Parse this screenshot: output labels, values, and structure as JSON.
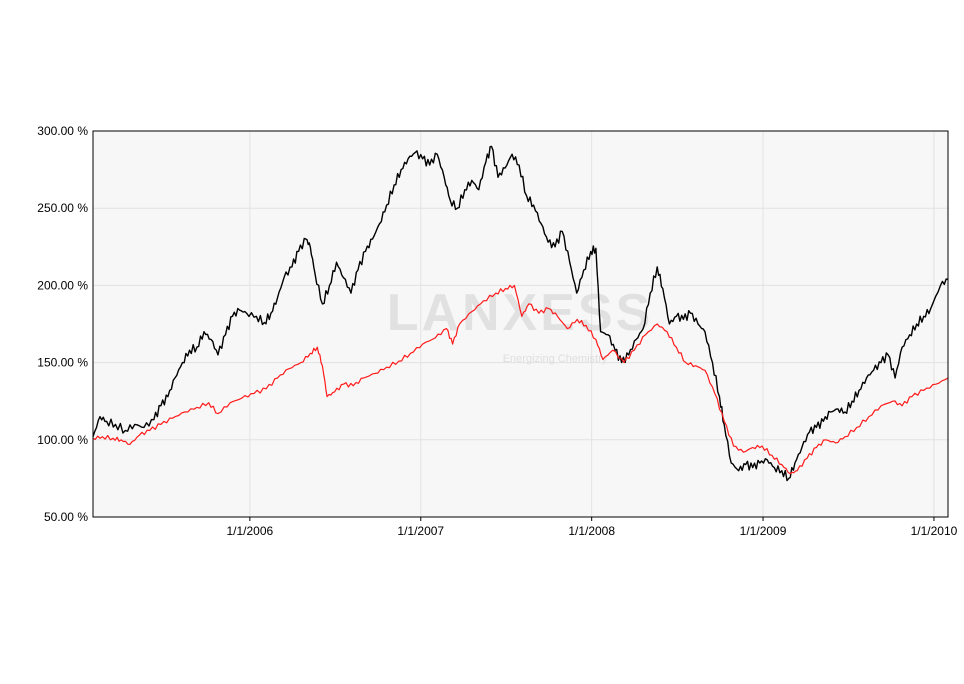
{
  "chart_data": {
    "type": "line",
    "title": "",
    "xlabel": "",
    "ylabel": "",
    "x_tick_labels": [
      "1/1/2006",
      "1/1/2007",
      "1/1/2008",
      "1/1/2009",
      "1/1/2010"
    ],
    "y_tick_labels": [
      "50.00 %",
      "100.00 %",
      "150.00 %",
      "200.00 %",
      "250.00 %",
      "300.00 %"
    ],
    "ylim": [
      50,
      300
    ],
    "xlim": [
      "2005-01-31",
      "2010-01-31"
    ],
    "grid": true,
    "watermark": {
      "logo_text": "LANXESS",
      "tagline": "Energizing Chemistry"
    },
    "colors": {
      "background": "#f7f7f7",
      "grid": "#e2e2e2",
      "series_black": "#000000",
      "series_red": "#ff1a1a",
      "watermark_logo": "#d0d0d0",
      "watermark_tagline": "#d8d8d8"
    },
    "series": [
      {
        "color": "#000000",
        "points": [
          [
            "2005-01-31",
            102
          ],
          [
            "2005-02-15",
            115
          ],
          [
            "2005-03-01",
            112
          ],
          [
            "2005-03-20",
            110
          ],
          [
            "2005-04-10",
            106
          ],
          [
            "2005-04-30",
            110
          ],
          [
            "2005-05-20",
            108
          ],
          [
            "2005-06-10",
            113
          ],
          [
            "2005-06-25",
            122
          ],
          [
            "2005-07-10",
            128
          ],
          [
            "2005-07-25",
            140
          ],
          [
            "2005-08-10",
            150
          ],
          [
            "2005-08-25",
            158
          ],
          [
            "2005-09-10",
            160
          ],
          [
            "2005-09-25",
            170
          ],
          [
            "2005-10-10",
            165
          ],
          [
            "2005-10-25",
            155
          ],
          [
            "2005-11-10",
            168
          ],
          [
            "2005-11-25",
            180
          ],
          [
            "2005-12-10",
            184
          ],
          [
            "2005-12-25",
            182
          ],
          [
            "2006-01-15",
            180
          ],
          [
            "2006-02-01",
            176
          ],
          [
            "2006-02-15",
            182
          ],
          [
            "2006-03-01",
            192
          ],
          [
            "2006-03-15",
            205
          ],
          [
            "2006-04-01",
            212
          ],
          [
            "2006-04-15",
            222
          ],
          [
            "2006-05-01",
            230
          ],
          [
            "2006-05-10",
            225
          ],
          [
            "2006-05-20",
            208
          ],
          [
            "2006-06-05",
            188
          ],
          [
            "2006-06-20",
            200
          ],
          [
            "2006-07-05",
            215
          ],
          [
            "2006-07-20",
            205
          ],
          [
            "2006-08-05",
            195
          ],
          [
            "2006-08-20",
            210
          ],
          [
            "2006-09-05",
            222
          ],
          [
            "2006-09-20",
            230
          ],
          [
            "2006-10-05",
            240
          ],
          [
            "2006-10-20",
            252
          ],
          [
            "2006-11-05",
            265
          ],
          [
            "2006-11-20",
            275
          ],
          [
            "2006-12-05",
            282
          ],
          [
            "2006-12-20",
            286
          ],
          [
            "2007-01-05",
            282
          ],
          [
            "2007-01-20",
            278
          ],
          [
            "2007-02-05",
            285
          ],
          [
            "2007-02-20",
            270
          ],
          [
            "2007-03-05",
            255
          ],
          [
            "2007-03-20",
            250
          ],
          [
            "2007-04-05",
            262
          ],
          [
            "2007-04-20",
            268
          ],
          [
            "2007-05-05",
            262
          ],
          [
            "2007-05-20",
            280
          ],
          [
            "2007-06-01",
            290
          ],
          [
            "2007-06-15",
            270
          ],
          [
            "2007-06-30",
            276
          ],
          [
            "2007-07-15",
            285
          ],
          [
            "2007-07-30",
            278
          ],
          [
            "2007-08-15",
            258
          ],
          [
            "2007-08-30",
            252
          ],
          [
            "2007-09-15",
            240
          ],
          [
            "2007-09-30",
            228
          ],
          [
            "2007-10-15",
            225
          ],
          [
            "2007-10-30",
            235
          ],
          [
            "2007-11-15",
            215
          ],
          [
            "2007-11-30",
            195
          ],
          [
            "2007-12-15",
            210
          ],
          [
            "2007-12-30",
            222
          ],
          [
            "2008-01-10",
            224
          ],
          [
            "2008-01-20",
            170
          ],
          [
            "2008-02-05",
            168
          ],
          [
            "2008-02-20",
            158
          ],
          [
            "2008-03-05",
            150
          ],
          [
            "2008-03-20",
            155
          ],
          [
            "2008-04-05",
            165
          ],
          [
            "2008-04-20",
            172
          ],
          [
            "2008-05-05",
            195
          ],
          [
            "2008-05-20",
            212
          ],
          [
            "2008-06-01",
            198
          ],
          [
            "2008-06-15",
            175
          ],
          [
            "2008-06-30",
            180
          ],
          [
            "2008-07-15",
            178
          ],
          [
            "2008-07-30",
            182
          ],
          [
            "2008-08-15",
            175
          ],
          [
            "2008-08-30",
            170
          ],
          [
            "2008-09-15",
            150
          ],
          [
            "2008-09-30",
            128
          ],
          [
            "2008-10-10",
            110
          ],
          [
            "2008-10-25",
            85
          ],
          [
            "2008-11-10",
            80
          ],
          [
            "2008-11-25",
            84
          ],
          [
            "2008-12-10",
            82
          ],
          [
            "2008-12-25",
            85
          ],
          [
            "2009-01-10",
            87
          ],
          [
            "2009-01-25",
            82
          ],
          [
            "2009-02-10",
            80
          ],
          [
            "2009-02-25",
            75
          ],
          [
            "2009-03-10",
            85
          ],
          [
            "2009-03-25",
            95
          ],
          [
            "2009-04-10",
            105
          ],
          [
            "2009-04-25",
            108
          ],
          [
            "2009-05-10",
            112
          ],
          [
            "2009-05-25",
            118
          ],
          [
            "2009-06-10",
            120
          ],
          [
            "2009-06-25",
            118
          ],
          [
            "2009-07-10",
            125
          ],
          [
            "2009-07-25",
            132
          ],
          [
            "2009-08-10",
            140
          ],
          [
            "2009-08-25",
            145
          ],
          [
            "2009-09-10",
            150
          ],
          [
            "2009-09-25",
            155
          ],
          [
            "2009-10-10",
            140
          ],
          [
            "2009-10-25",
            160
          ],
          [
            "2009-11-10",
            168
          ],
          [
            "2009-11-25",
            175
          ],
          [
            "2009-12-10",
            180
          ],
          [
            "2009-12-25",
            185
          ],
          [
            "2010-01-15",
            200
          ],
          [
            "2010-01-31",
            204
          ]
        ]
      },
      {
        "color": "#ff1a1a",
        "points": [
          [
            "2005-01-31",
            101
          ],
          [
            "2005-02-20",
            102
          ],
          [
            "2005-03-15",
            101
          ],
          [
            "2005-04-01",
            100
          ],
          [
            "2005-04-20",
            97
          ],
          [
            "2005-05-10",
            103
          ],
          [
            "2005-06-01",
            106
          ],
          [
            "2005-06-25",
            110
          ],
          [
            "2005-07-20",
            114
          ],
          [
            "2005-08-15",
            118
          ],
          [
            "2005-09-10",
            121
          ],
          [
            "2005-10-05",
            124
          ],
          [
            "2005-10-25",
            117
          ],
          [
            "2005-11-20",
            124
          ],
          [
            "2005-12-15",
            127
          ],
          [
            "2006-01-10",
            130
          ],
          [
            "2006-02-05",
            133
          ],
          [
            "2006-03-01",
            140
          ],
          [
            "2006-03-25",
            146
          ],
          [
            "2006-04-20",
            150
          ],
          [
            "2006-05-10",
            156
          ],
          [
            "2006-05-25",
            160
          ],
          [
            "2006-06-05",
            148
          ],
          [
            "2006-06-15",
            128
          ],
          [
            "2006-07-01",
            131
          ],
          [
            "2006-07-20",
            136
          ],
          [
            "2006-08-10",
            135
          ],
          [
            "2006-09-01",
            140
          ],
          [
            "2006-09-25",
            143
          ],
          [
            "2006-10-20",
            147
          ],
          [
            "2006-11-15",
            151
          ],
          [
            "2006-12-10",
            156
          ],
          [
            "2007-01-05",
            162
          ],
          [
            "2007-02-01",
            166
          ],
          [
            "2007-02-25",
            172
          ],
          [
            "2007-03-10",
            162
          ],
          [
            "2007-03-25",
            175
          ],
          [
            "2007-04-20",
            183
          ],
          [
            "2007-05-15",
            190
          ],
          [
            "2007-06-10",
            195
          ],
          [
            "2007-07-01",
            198
          ],
          [
            "2007-07-20",
            200
          ],
          [
            "2007-08-05",
            180
          ],
          [
            "2007-08-20",
            188
          ],
          [
            "2007-09-10",
            182
          ],
          [
            "2007-10-01",
            185
          ],
          [
            "2007-10-20",
            180
          ],
          [
            "2007-11-10",
            172
          ],
          [
            "2007-12-01",
            178
          ],
          [
            "2007-12-20",
            174
          ],
          [
            "2008-01-10",
            165
          ],
          [
            "2008-01-25",
            152
          ],
          [
            "2008-02-15",
            158
          ],
          [
            "2008-03-10",
            150
          ],
          [
            "2008-04-01",
            158
          ],
          [
            "2008-04-25",
            168
          ],
          [
            "2008-05-20",
            175
          ],
          [
            "2008-06-10",
            170
          ],
          [
            "2008-06-30",
            160
          ],
          [
            "2008-07-20",
            150
          ],
          [
            "2008-08-10",
            148
          ],
          [
            "2008-08-30",
            145
          ],
          [
            "2008-09-20",
            130
          ],
          [
            "2008-10-10",
            112
          ],
          [
            "2008-10-30",
            96
          ],
          [
            "2008-11-20",
            92
          ],
          [
            "2008-12-10",
            95
          ],
          [
            "2008-12-30",
            96
          ],
          [
            "2009-01-20",
            90
          ],
          [
            "2009-02-10",
            84
          ],
          [
            "2009-02-28",
            78
          ],
          [
            "2009-03-15",
            80
          ],
          [
            "2009-04-05",
            88
          ],
          [
            "2009-04-25",
            95
          ],
          [
            "2009-05-15",
            100
          ],
          [
            "2009-06-05",
            98
          ],
          [
            "2009-06-25",
            102
          ],
          [
            "2009-07-20",
            108
          ],
          [
            "2009-08-15",
            115
          ],
          [
            "2009-09-10",
            122
          ],
          [
            "2009-10-05",
            125
          ],
          [
            "2009-10-25",
            122
          ],
          [
            "2009-11-15",
            128
          ],
          [
            "2009-12-10",
            132
          ],
          [
            "2010-01-05",
            136
          ],
          [
            "2010-01-31",
            140
          ]
        ]
      }
    ]
  }
}
